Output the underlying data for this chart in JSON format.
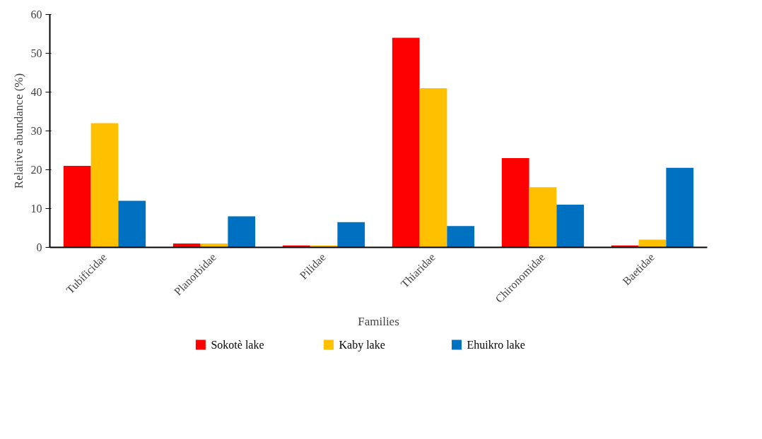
{
  "chart_data": {
    "type": "bar",
    "xlabel": "Families",
    "ylabel": "Relative abundance (%)",
    "categories": [
      "Tubificidae",
      "Planorbidae",
      "Pilidae",
      "Thiaridae",
      "Chironomidae",
      "Baetidae"
    ],
    "series": [
      {
        "name": "Sokotè lake",
        "color": "#ff0000",
        "values": [
          21,
          1,
          0.5,
          54,
          23,
          0.5
        ]
      },
      {
        "name": "Kaby lake",
        "color": "#ffc000",
        "values": [
          32,
          1,
          0.5,
          41,
          15.5,
          2
        ]
      },
      {
        "name": "Ehuikro lake",
        "color": "#0070c0",
        "values": [
          12,
          8,
          6.5,
          5.5,
          11,
          20.5
        ]
      }
    ],
    "ylim": [
      0,
      60
    ],
    "yticks": [
      0,
      10,
      20,
      30,
      40,
      50,
      60
    ],
    "grid": false,
    "legend": "bottom"
  }
}
